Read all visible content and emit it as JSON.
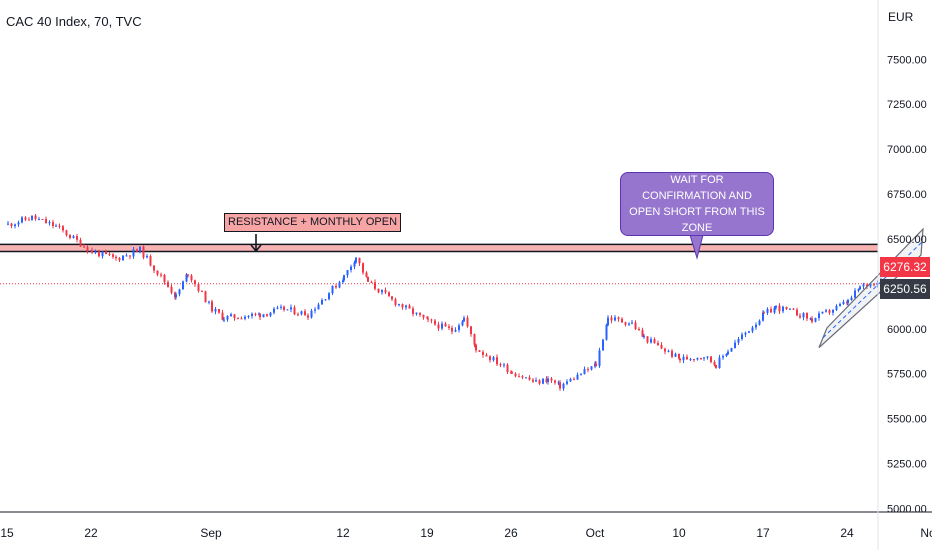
{
  "header": {
    "title": "CAC 40 Index, 70, TVC",
    "currency": "EUR"
  },
  "annotations": {
    "resistance_label": "RESISTANCE + MONTHLY OPEN",
    "bubble_text": "WAIT FOR CONFIRMATION AND OPEN SHORT FROM THIS ZONE"
  },
  "price_badges": {
    "last": "6276.32",
    "second": "6250.56"
  },
  "colors": {
    "up": "#2962ff",
    "down": "#f23645",
    "zone": "#f7b2b2",
    "line": "#131722",
    "bubble": "#9575cd",
    "channel": "#b2b5be"
  },
  "chart_data": {
    "type": "candlestick",
    "title": "CAC 40 Index, 70, TVC",
    "yticks": [
      5000,
      5250,
      5500,
      5750,
      6000,
      6250,
      6500,
      6750,
      7000,
      7250,
      7500
    ],
    "ytick_labels": [
      "5000.00",
      "5250.00",
      "5500.00",
      "5750.00",
      "6000.00",
      "6250.00",
      "6500.00",
      "6750.00",
      "7000.00",
      "7250.00",
      "7500.00"
    ],
    "ylim": [
      4980,
      7830
    ],
    "xtick_labels": [
      "15",
      "22",
      "Sep",
      "12",
      "19",
      "26",
      "Oct",
      "10",
      "17",
      "24",
      "Nov"
    ],
    "resistance_zone": [
      6430,
      6470
    ],
    "last_price": 6276.32,
    "second_price": 6250.56,
    "channel": {
      "start": [
        "Oct 22",
        5960
      ],
      "end": [
        "Oct 27",
        6330
      ],
      "width": 90
    },
    "path_points": [
      [
        "Aug 15",
        6580
      ],
      [
        "Aug 17",
        6620
      ],
      [
        "Aug 19",
        6570
      ],
      [
        "Aug 22",
        6430
      ],
      [
        "Aug 24",
        6390
      ],
      [
        "Aug 26",
        6440
      ],
      [
        "Aug 29",
        6180
      ],
      [
        "Aug 30",
        6310
      ],
      [
        "Sep 1",
        6110
      ],
      [
        "Sep 2",
        6060
      ],
      [
        "Sep 5",
        6080
      ],
      [
        "Sep 7",
        6110
      ],
      [
        "Sep 9",
        6080
      ],
      [
        "Sep 12",
        6290
      ],
      [
        "Sep 13",
        6400
      ],
      [
        "Sep 14",
        6260
      ],
      [
        "Sep 16",
        6160
      ],
      [
        "Sep 19",
        6040
      ],
      [
        "Sep 21",
        5990
      ],
      [
        "Sep 22",
        6060
      ],
      [
        "Sep 23",
        5890
      ],
      [
        "Sep 26",
        5760
      ],
      [
        "Sep 28",
        5700
      ],
      [
        "Sep 29",
        5720
      ],
      [
        "Sep 30",
        5680
      ],
      [
        "Oct 3",
        5800
      ],
      [
        "Oct 4",
        6060
      ],
      [
        "Oct 6",
        6030
      ],
      [
        "Oct 7",
        5950
      ],
      [
        "Oct 10",
        5830
      ],
      [
        "Oct 12",
        5850
      ],
      [
        "Oct 13",
        5800
      ],
      [
        "Oct 14",
        5880
      ],
      [
        "Oct 17",
        6080
      ],
      [
        "Oct 18",
        6120
      ],
      [
        "Oct 20",
        6080
      ],
      [
        "Oct 21",
        6050
      ],
      [
        "Oct 24",
        6150
      ],
      [
        "Oct 25",
        6230
      ],
      [
        "Oct 27",
        6280
      ]
    ]
  }
}
